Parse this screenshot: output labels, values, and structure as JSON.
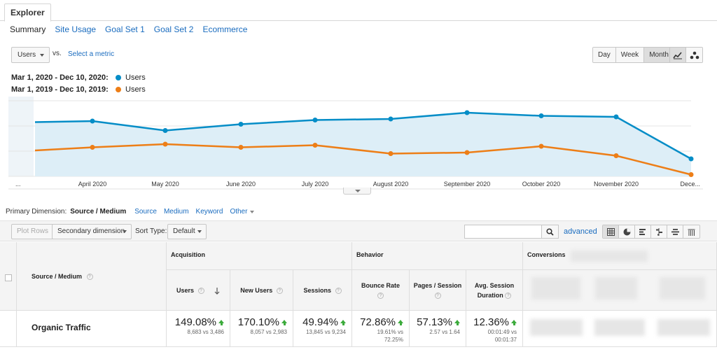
{
  "tabs": {
    "explorer": "Explorer"
  },
  "subtabs": [
    {
      "label": "Summary",
      "active": true
    },
    {
      "label": "Site Usage"
    },
    {
      "label": "Goal Set 1"
    },
    {
      "label": "Goal Set 2"
    },
    {
      "label": "Ecommerce"
    }
  ],
  "metric": {
    "selected": "Users",
    "vs": "vs.",
    "select_metric": "Select a metric"
  },
  "granularity": {
    "day": "Day",
    "week": "Week",
    "month": "Month",
    "active": "Month"
  },
  "legend": [
    {
      "range": "Mar 1, 2020 - Dec 10, 2020:",
      "series": "Users",
      "color": "#058dc7"
    },
    {
      "range": "Mar 1, 2019 - Dec 10, 2019:",
      "series": "Users",
      "color": "#ed7e17"
    }
  ],
  "chart_data": {
    "type": "line",
    "categories": [
      "...",
      "April 2020",
      "May 2020",
      "June 2020",
      "July 2020",
      "August 2020",
      "September 2020",
      "October 2020",
      "November 2020",
      "Dece..."
    ],
    "x_points": 10,
    "series": [
      {
        "name": "Users",
        "range": "Mar 1, 2020 - Dec 10, 2020",
        "color": "#058dc7",
        "values": [
          65,
          66,
          57,
          63,
          67,
          68,
          74,
          71,
          70,
          30
        ]
      },
      {
        "name": "Users",
        "range": "Mar 1, 2019 - Dec 10, 2019",
        "color": "#ed7e17",
        "values": [
          38,
          41,
          44,
          41,
          43,
          35,
          36,
          42,
          33,
          15
        ]
      }
    ],
    "ylim": [
      0,
      100
    ],
    "grid": true,
    "area_fill": "#ddeef7",
    "tick_labels_visible": false
  },
  "primary_dimension": {
    "label": "Primary Dimension:",
    "active": "Source / Medium",
    "links": [
      "Source",
      "Medium",
      "Keyword"
    ],
    "other": "Other"
  },
  "toolbar": {
    "plot_rows": "Plot Rows",
    "secondary_dimension": "Secondary dimension",
    "sort_type_label": "Sort Type:",
    "sort_type_value": "Default",
    "search_placeholder": "",
    "advanced": "advanced"
  },
  "table": {
    "dimension_header": "Source / Medium",
    "groups": {
      "acquisition": "Acquisition",
      "behavior": "Behavior",
      "conversions": "Conversions"
    },
    "columns": {
      "users": "Users",
      "new_users": "New Users",
      "sessions": "Sessions",
      "bounce_rate": "Bounce Rate",
      "pages_session": "Pages / Session",
      "avg_session_1": "Avg. Session",
      "avg_session_2": "Duration"
    },
    "row": {
      "label": "Organic Traffic",
      "users": {
        "value": "149.08%",
        "sub": "8,683 vs 3,486"
      },
      "new_users": {
        "value": "170.10%",
        "sub": "8,057 vs 2,983"
      },
      "sessions": {
        "value": "49.94%",
        "sub": "13,845 vs 9,234"
      },
      "bounce_rate": {
        "value": "72.86%",
        "sub1": "19.61% vs",
        "sub2": "72.25%"
      },
      "pages_session": {
        "value": "57.13%",
        "sub": "2.57 vs 1.64"
      },
      "avg_session": {
        "value": "12.36%",
        "sub1": "00:01:49 vs",
        "sub2": "00:01:37"
      }
    },
    "qmark": "?"
  }
}
